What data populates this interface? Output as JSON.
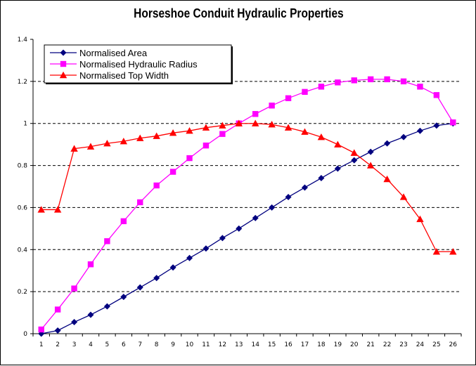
{
  "chart_data": {
    "type": "line",
    "title": "Horseshoe Conduit Hydraulic Properties",
    "xlabel": "",
    "ylabel": "",
    "categories": [
      "1",
      "2",
      "3",
      "4",
      "5",
      "6",
      "7",
      "8",
      "9",
      "10",
      "11",
      "12",
      "13",
      "14",
      "15",
      "16",
      "17",
      "18",
      "19",
      "20",
      "21",
      "22",
      "23",
      "24",
      "25",
      "26"
    ],
    "ylim": [
      0,
      1.4
    ],
    "yticks": [
      "0",
      "0.2",
      "0.4",
      "0.6",
      "0.8",
      "1",
      "1.2",
      "1.4"
    ],
    "grid": "horizontal dashed",
    "legend_position": "top-left",
    "series": [
      {
        "name": "Normalised Area",
        "color": "#00007f",
        "marker": "diamond",
        "values": [
          0.0,
          0.015,
          0.055,
          0.09,
          0.13,
          0.175,
          0.22,
          0.265,
          0.315,
          0.36,
          0.405,
          0.455,
          0.5,
          0.55,
          0.6,
          0.65,
          0.695,
          0.74,
          0.785,
          0.825,
          0.865,
          0.905,
          0.935,
          0.965,
          0.99,
          1.0
        ]
      },
      {
        "name": "Normalised Hydraulic Radius",
        "color": "#ff00ff",
        "marker": "square",
        "values": [
          0.02,
          0.115,
          0.215,
          0.33,
          0.44,
          0.535,
          0.625,
          0.705,
          0.77,
          0.835,
          0.895,
          0.95,
          1.0,
          1.045,
          1.085,
          1.12,
          1.15,
          1.175,
          1.195,
          1.205,
          1.21,
          1.21,
          1.2,
          1.175,
          1.135,
          1.005
        ]
      },
      {
        "name": "Normalised Top Width",
        "color": "#ff0000",
        "marker": "triangle",
        "values": [
          0.59,
          0.59,
          0.88,
          0.89,
          0.905,
          0.915,
          0.93,
          0.94,
          0.955,
          0.965,
          0.98,
          0.99,
          1.0,
          1.0,
          0.995,
          0.98,
          0.96,
          0.935,
          0.9,
          0.86,
          0.8,
          0.735,
          0.65,
          0.545,
          0.39,
          0.39
        ]
      }
    ]
  }
}
